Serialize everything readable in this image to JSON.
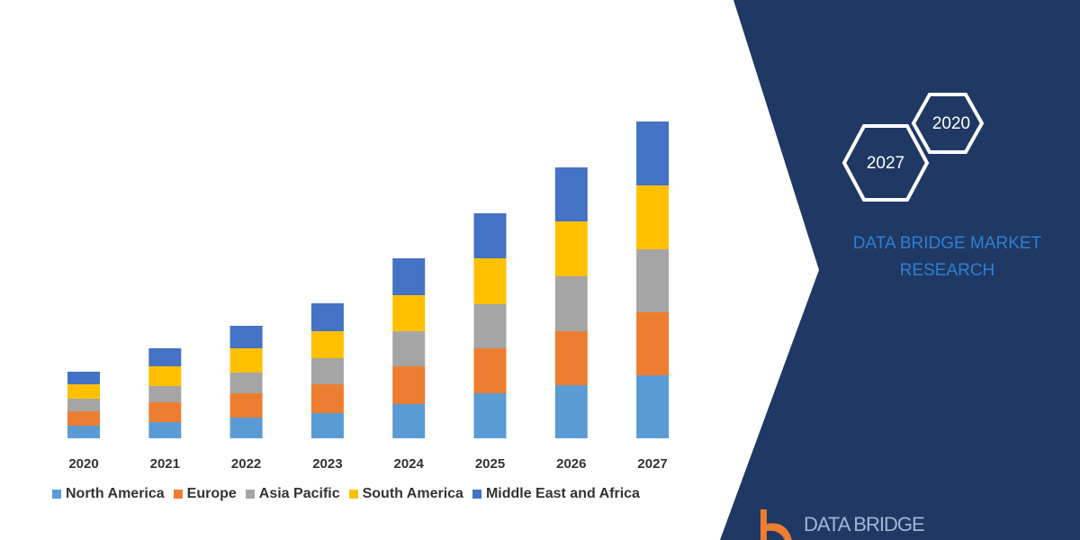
{
  "chart_data": {
    "type": "bar",
    "stacked": true,
    "title": "",
    "xlabel": "",
    "ylabel": "",
    "categories": [
      "2020",
      "2021",
      "2022",
      "2023",
      "2024",
      "2025",
      "2026",
      "2027"
    ],
    "series": [
      {
        "name": "North America",
        "color": "#5b9bd5",
        "values": [
          14,
          18,
          23,
          28,
          38,
          50,
          59,
          70
        ]
      },
      {
        "name": "Europe",
        "color": "#ed7d31",
        "values": [
          16,
          22,
          27,
          32,
          42,
          50,
          60,
          70
        ]
      },
      {
        "name": "Asia Pacific",
        "color": "#a5a5a5",
        "values": [
          14,
          18,
          23,
          29,
          39,
          49,
          61,
          70
        ]
      },
      {
        "name": "South America",
        "color": "#ffc000",
        "values": [
          16,
          22,
          27,
          30,
          40,
          51,
          61,
          71
        ]
      },
      {
        "name": "Middle East and Africa",
        "color": "#4472c4",
        "values": [
          14,
          20,
          25,
          31,
          41,
          50,
          60,
          71
        ]
      }
    ],
    "ylim": [
      0,
      360
    ],
    "grid": false,
    "legend_position": "bottom"
  },
  "panel": {
    "hex_years": [
      "2020",
      "2027"
    ],
    "brand_text": "DATA BRIDGE MARKET RESEARCH",
    "logo_text": "DATA BRIDGE",
    "panel_color": "#1f3864"
  }
}
